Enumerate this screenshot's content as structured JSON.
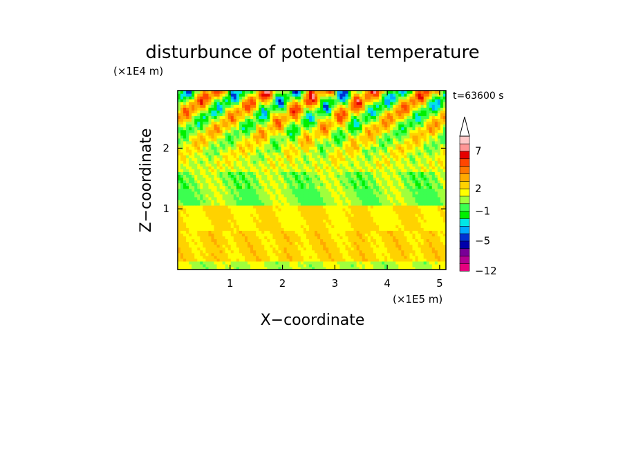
{
  "chart_data": {
    "type": "heatmap",
    "title": "disturbunce of potential temperature",
    "xlabel": "X−coordinate",
    "ylabel": "Z−coordinate",
    "x_unit": "(×1E5 m)",
    "y_unit": "(×1E4 m)",
    "time_label": "t=63600 s",
    "xlim": [
      0,
      5.12
    ],
    "ylim": [
      0,
      2.95
    ],
    "x_ticks": [
      1,
      2,
      3,
      4,
      5
    ],
    "y_ticks": [
      1,
      2
    ],
    "colorbar": {
      "levels": [
        -12,
        -10,
        -8,
        -6,
        -5,
        -4,
        -3,
        -2,
        -1,
        0,
        1,
        2,
        3,
        4,
        5,
        6,
        7,
        8,
        9,
        10
      ],
      "labeled_ticks": [
        {
          "value": -12,
          "label": "−12"
        },
        {
          "value": -5,
          "label": "−5"
        },
        {
          "value": -1,
          "label": "−1"
        },
        {
          "value": 2,
          "label": "2"
        },
        {
          "value": 7,
          "label": "7"
        }
      ],
      "colors": [
        "#e6007e",
        "#b40090",
        "#780096",
        "#0000aa",
        "#0032d2",
        "#00aaff",
        "#00e6e6",
        "#00f000",
        "#3cff50",
        "#a0ff3c",
        "#ffff00",
        "#ffd200",
        "#ffaa00",
        "#ff7800",
        "#ff4600",
        "#e60000",
        "#ff9696",
        "#ffc8c8"
      ]
    }
  }
}
